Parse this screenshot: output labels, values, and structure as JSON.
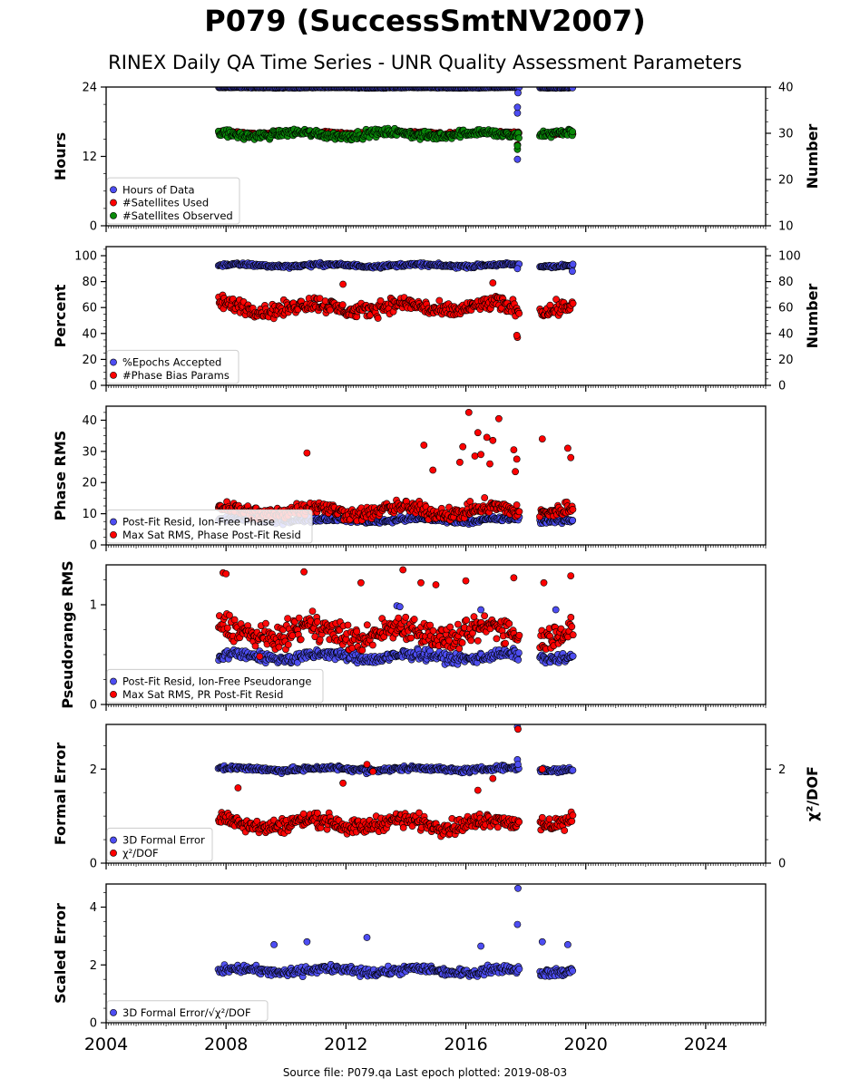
{
  "title": "P079 (SuccessSmtNV2007)",
  "subtitle": "RINEX Daily QA Time Series - UNR Quality Assessment Parameters",
  "footer": "Source file: P079.qa Last epoch plotted: 2019-08-03",
  "colors": {
    "blue": "#4d4df2",
    "red": "#ff0000",
    "green": "#0a8a0a",
    "edge": "#000000"
  },
  "chart_data": [
    {
      "type": "scatter",
      "ylabel": "Hours",
      "ylabel_right": "Number",
      "xlim": [
        2004,
        2026
      ],
      "ylim": [
        0,
        24
      ],
      "yticks": [
        0,
        12,
        24
      ],
      "ylim_right": [
        10,
        40
      ],
      "yticks_right": [
        10,
        20,
        30,
        40
      ],
      "data_span": [
        2007.75,
        2019.59
      ],
      "gap": [
        2017.78,
        2018.45
      ],
      "legend": {
        "position": "lower-left",
        "entries": [
          "Hours of Data",
          "#Satellites Used",
          "#Satellites Observed"
        ]
      },
      "series": [
        {
          "name": "Hours of Data",
          "color": "blue",
          "axis": "left",
          "base": 23.9,
          "spread": 0.1,
          "low_points": [
            [
              2017.72,
              11.5
            ],
            [
              2017.72,
              14.0
            ],
            [
              2017.72,
              19.5
            ],
            [
              2017.72,
              20.5
            ],
            [
              2017.74,
              23.0
            ]
          ]
        },
        {
          "name": "#Satellites Used",
          "color": "red",
          "axis": "right",
          "base": 30.0,
          "spread": 0.5,
          "low_points": [
            [
              2017.72,
              27.5
            ],
            [
              2009.7,
              30.5
            ]
          ]
        },
        {
          "name": "#Satellites Observed",
          "color": "green",
          "axis": "right",
          "base": 29.8,
          "spread": 1.3,
          "low_points": [
            [
              2017.72,
              26.5
            ],
            [
              2017.72,
              27.3
            ]
          ]
        }
      ]
    },
    {
      "type": "scatter",
      "ylabel": "Percent",
      "ylabel_right": "Number",
      "xlim": [
        2004,
        2026
      ],
      "ylim": [
        0,
        107
      ],
      "yticks": [
        0,
        20,
        40,
        60,
        80,
        100
      ],
      "ylim_right": [
        0,
        107
      ],
      "yticks_right": [
        0,
        20,
        40,
        60,
        80,
        100
      ],
      "data_span": [
        2007.75,
        2019.59
      ],
      "gap": [
        2017.78,
        2018.45
      ],
      "legend": {
        "position": "lower-left",
        "entries": [
          "%Epochs Accepted",
          "#Phase Bias Params"
        ]
      },
      "series": [
        {
          "name": "%Epochs Accepted",
          "color": "blue",
          "axis": "left",
          "base": 92.5,
          "spread": 2.0,
          "low_points": [
            [
              2017.72,
              90.0
            ],
            [
              2019.55,
              88.0
            ]
          ]
        },
        {
          "name": "#Phase Bias Params",
          "color": "red",
          "axis": "right",
          "base": 60.0,
          "spread": 9.0,
          "low_points": [
            [
              2017.72,
              37.0
            ],
            [
              2017.7,
              38.5
            ],
            [
              2011.9,
              78.0
            ],
            [
              2016.9,
              79.0
            ]
          ]
        }
      ]
    },
    {
      "type": "scatter",
      "ylabel": "Phase RMS",
      "xlim": [
        2004,
        2026
      ],
      "ylim": [
        0,
        44.5
      ],
      "yticks": [
        0,
        10,
        20,
        30,
        40
      ],
      "data_span": [
        2007.75,
        2019.59
      ],
      "gap": [
        2017.78,
        2018.45
      ],
      "legend": {
        "position": "lower-left",
        "entries": [
          "Post-Fit Resid, Ion-Free Phase",
          "Max Sat RMS, Phase Post-Fit Resid"
        ]
      },
      "series": [
        {
          "name": "Post-Fit Resid, Ion-Free Phase",
          "color": "blue",
          "axis": "left",
          "base": 8.0,
          "spread": 1.2,
          "low_points": []
        },
        {
          "name": "Max Sat RMS, Phase Post-Fit Resid",
          "color": "red",
          "axis": "left",
          "base": 11.0,
          "spread": 3.5,
          "low_points": [
            [
              2016.1,
              42.5
            ],
            [
              2016.4,
              36.0
            ],
            [
              2017.1,
              40.5
            ],
            [
              2016.9,
              33.5
            ],
            [
              2016.7,
              34.5
            ],
            [
              2018.55,
              34.0
            ],
            [
              2019.4,
              31.0
            ],
            [
              2019.5,
              28.0
            ],
            [
              2016.3,
              28.5
            ],
            [
              2015.9,
              31.5
            ],
            [
              2010.7,
              29.5
            ],
            [
              2014.6,
              32.0
            ],
            [
              2017.6,
              30.5
            ],
            [
              2016.5,
              29.0
            ],
            [
              2017.7,
              27.5
            ],
            [
              2016.8,
              26.0
            ],
            [
              2015.8,
              26.5
            ],
            [
              2017.65,
              23.5
            ],
            [
              2014.9,
              24.0
            ]
          ]
        }
      ]
    },
    {
      "type": "scatter",
      "ylabel": "Pseudorange RMS",
      "xlim": [
        2004,
        2026
      ],
      "ylim": [
        0,
        1.4
      ],
      "yticks": [
        0,
        1
      ],
      "data_span": [
        2007.75,
        2019.59
      ],
      "gap": [
        2017.78,
        2018.45
      ],
      "legend": {
        "position": "lower-left",
        "entries": [
          "Post-Fit Resid, Ion-Free Pseudorange",
          "Max Sat RMS, PR Post-Fit Resid"
        ]
      },
      "series": [
        {
          "name": "Post-Fit Resid, Ion-Free Pseudorange",
          "color": "blue",
          "axis": "left",
          "base": 0.48,
          "spread": 0.08,
          "low_points": [
            [
              2013.7,
              0.99
            ],
            [
              2013.8,
              0.98
            ],
            [
              2016.5,
              0.95
            ],
            [
              2019.0,
              0.95
            ]
          ]
        },
        {
          "name": "Max Sat RMS, PR Post-Fit Resid",
          "color": "red",
          "axis": "left",
          "base": 0.72,
          "spread": 0.2,
          "low_points": [
            [
              2013.9,
              1.35
            ],
            [
              2007.9,
              1.32
            ],
            [
              2008.0,
              1.31
            ],
            [
              2010.6,
              1.33
            ],
            [
              2017.6,
              1.27
            ],
            [
              2019.5,
              1.29
            ],
            [
              2018.6,
              1.22
            ],
            [
              2016.0,
              1.24
            ],
            [
              2014.5,
              1.22
            ],
            [
              2015.0,
              1.2
            ],
            [
              2012.5,
              1.22
            ]
          ]
        }
      ]
    },
    {
      "type": "scatter",
      "ylabel": "Formal Error",
      "ylabel_right": "χ²/DOF",
      "xlim": [
        2004,
        2026
      ],
      "ylim": [
        0,
        2.95
      ],
      "yticks": [
        0,
        2
      ],
      "ylim_right": [
        0,
        2.95
      ],
      "yticks_right": [
        0,
        2
      ],
      "data_span": [
        2007.75,
        2019.59
      ],
      "gap": [
        2017.78,
        2018.45
      ],
      "legend": {
        "position": "lower-left",
        "entries": [
          "3D Formal Error",
          "χ²/DOF"
        ]
      },
      "series": [
        {
          "name": "3D Formal Error",
          "color": "blue",
          "axis": "left",
          "base": 2.0,
          "spread": 0.08,
          "low_points": [
            [
              2017.72,
              2.9
            ],
            [
              2017.72,
              2.2
            ],
            [
              2017.74,
              2.1
            ]
          ]
        },
        {
          "name": "χ²/DOF",
          "color": "red",
          "axis": "right",
          "base": 0.85,
          "spread": 0.25,
          "low_points": [
            [
              2017.74,
              2.85
            ],
            [
              2018.55,
              2.0
            ],
            [
              2012.7,
              2.1
            ],
            [
              2012.9,
              1.95
            ],
            [
              2016.9,
              1.8
            ],
            [
              2008.4,
              1.6
            ],
            [
              2016.4,
              1.55
            ],
            [
              2011.9,
              1.7
            ]
          ]
        }
      ]
    },
    {
      "type": "scatter",
      "ylabel": "Scaled Error",
      "xlim": [
        2004,
        2026
      ],
      "ylim": [
        0,
        4.8
      ],
      "yticks": [
        0,
        2,
        4
      ],
      "data_span": [
        2007.75,
        2019.59
      ],
      "gap": [
        2017.78,
        2018.45
      ],
      "xticks": [
        2004,
        2008,
        2012,
        2016,
        2020,
        2024
      ],
      "legend": {
        "position": "lower-left",
        "entries": [
          "3D Formal Error/√χ²/DOF"
        ]
      },
      "series": [
        {
          "name": "3D Formal Error/√χ²/DOF",
          "color": "blue",
          "axis": "left",
          "base": 1.8,
          "spread": 0.22,
          "low_points": [
            [
              2017.74,
              4.65
            ],
            [
              2017.72,
              3.4
            ],
            [
              2012.7,
              2.95
            ],
            [
              2018.55,
              2.8
            ],
            [
              2010.7,
              2.8
            ],
            [
              2009.6,
              2.7
            ],
            [
              2019.4,
              2.7
            ],
            [
              2016.5,
              2.65
            ]
          ]
        }
      ]
    }
  ]
}
